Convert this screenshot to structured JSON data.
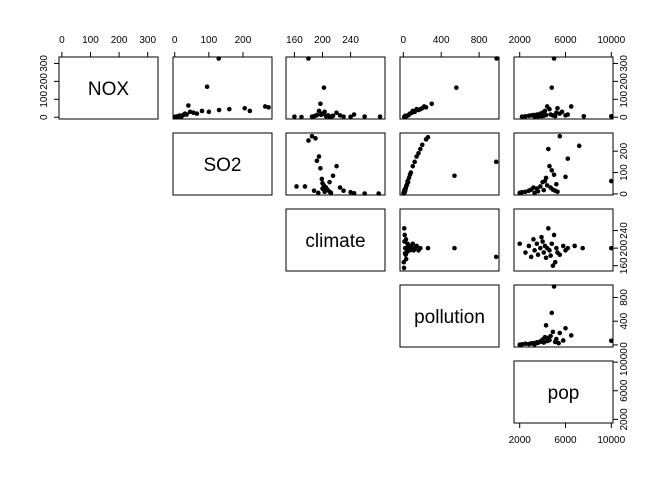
{
  "chart_data": {
    "type": "scatter",
    "layout": "upper-triangle scatterplot matrix",
    "variables": [
      {
        "name": "NOX",
        "ticks": [
          0,
          100,
          200,
          300
        ],
        "tick_labels": [
          "0",
          "100",
          "200",
          "300"
        ],
        "range": [
          -10,
          336
        ]
      },
      {
        "name": "SO2",
        "ticks": [
          0,
          100,
          200
        ],
        "tick_labels": [
          "0",
          "100",
          "200"
        ],
        "range": [
          -5,
          285
        ]
      },
      {
        "name": "climate",
        "ticks": [
          160,
          200,
          240
        ],
        "tick_labels": [
          "160",
          "200",
          "240"
        ],
        "range": [
          148,
          289
        ]
      },
      {
        "name": "pollution",
        "ticks": [
          0,
          400,
          800
        ],
        "tick_labels": [
          "0",
          "400",
          "800"
        ],
        "range": [
          -35,
          1010
        ]
      },
      {
        "name": "pop",
        "ticks": [
          2000,
          6000,
          10000
        ],
        "tick_labels": [
          "2000",
          "6000",
          "10000"
        ],
        "range": [
          1500,
          10150
        ]
      }
    ],
    "panels": [
      {
        "row": "NOX",
        "col": "SO2",
        "points": [
          [
            1,
            2
          ],
          [
            3,
            3
          ],
          [
            5,
            2
          ],
          [
            6,
            4
          ],
          [
            8,
            3
          ],
          [
            10,
            5
          ],
          [
            12,
            6
          ],
          [
            15,
            9
          ],
          [
            20,
            4
          ],
          [
            25,
            12
          ],
          [
            30,
            20
          ],
          [
            35,
            15
          ],
          [
            40,
            65
          ],
          [
            45,
            30
          ],
          [
            55,
            25
          ],
          [
            65,
            20
          ],
          [
            80,
            35
          ],
          [
            95,
            170
          ],
          [
            100,
            30
          ],
          [
            130,
            40
          ],
          [
            160,
            45
          ],
          [
            205,
            50
          ],
          [
            220,
            35
          ],
          [
            265,
            60
          ],
          [
            275,
            55
          ],
          [
            129,
            330
          ]
        ]
      },
      {
        "row": "NOX",
        "col": "climate",
        "points": [
          [
            160,
            3
          ],
          [
            170,
            1
          ],
          [
            180,
            330
          ],
          [
            185,
            3
          ],
          [
            188,
            6
          ],
          [
            192,
            12
          ],
          [
            195,
            35
          ],
          [
            197,
            75
          ],
          [
            200,
            20
          ],
          [
            202,
            165
          ],
          [
            205,
            5
          ],
          [
            210,
            2
          ],
          [
            215,
            8
          ],
          [
            220,
            25
          ],
          [
            230,
            3
          ],
          [
            245,
            15
          ],
          [
            260,
            4
          ],
          [
            282,
            3
          ],
          [
            190,
            8
          ],
          [
            198,
            14
          ],
          [
            203,
            30
          ],
          [
            208,
            10
          ],
          [
            213,
            4
          ],
          [
            225,
            10
          ],
          [
            240,
            2
          ]
        ]
      },
      {
        "row": "NOX",
        "col": "pollution",
        "points": [
          [
            10,
            2
          ],
          [
            30,
            5
          ],
          [
            50,
            10
          ],
          [
            70,
            20
          ],
          [
            90,
            25
          ],
          [
            120,
            30
          ],
          [
            160,
            40
          ],
          [
            200,
            50
          ],
          [
            240,
            55
          ],
          [
            300,
            75
          ],
          [
            560,
            165
          ],
          [
            985,
            330
          ],
          [
            20,
            8
          ],
          [
            60,
            15
          ],
          [
            100,
            35
          ],
          [
            140,
            45
          ],
          [
            180,
            45
          ],
          [
            220,
            60
          ]
        ]
      },
      {
        "row": "NOX",
        "col": "pop",
        "points": [
          [
            2200,
            3
          ],
          [
            2500,
            5
          ],
          [
            2800,
            8
          ],
          [
            3000,
            10
          ],
          [
            3200,
            12
          ],
          [
            3500,
            15
          ],
          [
            3800,
            20
          ],
          [
            4000,
            25
          ],
          [
            4200,
            35
          ],
          [
            4400,
            60
          ],
          [
            4600,
            45
          ],
          [
            4800,
            165
          ],
          [
            5000,
            330
          ],
          [
            5200,
            25
          ],
          [
            5500,
            20
          ],
          [
            6000,
            10
          ],
          [
            6500,
            60
          ],
          [
            7600,
            5
          ],
          [
            10000,
            5
          ],
          [
            3600,
            4
          ],
          [
            3900,
            6
          ],
          [
            4100,
            8
          ],
          [
            4300,
            12
          ],
          [
            4700,
            15
          ],
          [
            4900,
            10
          ],
          [
            5100,
            6
          ],
          [
            5300,
            50
          ],
          [
            5700,
            30
          ],
          [
            6200,
            15
          ],
          [
            3300,
            3
          ]
        ]
      },
      {
        "row": "SO2",
        "col": "climate",
        "points": [
          [
            180,
            250
          ],
          [
            185,
            270
          ],
          [
            190,
            260
          ],
          [
            192,
            155
          ],
          [
            195,
            175
          ],
          [
            197,
            120
          ],
          [
            199,
            70
          ],
          [
            200,
            50
          ],
          [
            202,
            40
          ],
          [
            205,
            30
          ],
          [
            207,
            20
          ],
          [
            210,
            10
          ],
          [
            212,
            5
          ],
          [
            215,
            85
          ],
          [
            220,
            130
          ],
          [
            225,
            30
          ],
          [
            230,
            15
          ],
          [
            240,
            8
          ],
          [
            245,
            3
          ],
          [
            260,
            2
          ],
          [
            280,
            2
          ],
          [
            163,
            35
          ],
          [
            175,
            35
          ],
          [
            200,
            25
          ],
          [
            210,
            55
          ],
          [
            188,
            15
          ],
          [
            194,
            5
          ],
          [
            203,
            10
          ]
        ]
      },
      {
        "row": "SO2",
        "col": "pollution",
        "points": [
          [
            5,
            1
          ],
          [
            10,
            5
          ],
          [
            15,
            8
          ],
          [
            20,
            15
          ],
          [
            25,
            25
          ],
          [
            30,
            35
          ],
          [
            40,
            45
          ],
          [
            45,
            60
          ],
          [
            60,
            75
          ],
          [
            80,
            100
          ],
          [
            100,
            130
          ],
          [
            120,
            150
          ],
          [
            140,
            175
          ],
          [
            160,
            190
          ],
          [
            180,
            210
          ],
          [
            200,
            230
          ],
          [
            240,
            255
          ],
          [
            260,
            265
          ],
          [
            540,
            85
          ],
          [
            980,
            150
          ],
          [
            2,
            3
          ],
          [
            8,
            10
          ],
          [
            12,
            18
          ],
          [
            18,
            22
          ],
          [
            35,
            40
          ],
          [
            50,
            55
          ],
          [
            70,
            90
          ]
        ]
      },
      {
        "row": "SO2",
        "col": "pop",
        "points": [
          [
            2000,
            5
          ],
          [
            2200,
            8
          ],
          [
            2500,
            10
          ],
          [
            2800,
            15
          ],
          [
            3000,
            20
          ],
          [
            3200,
            30
          ],
          [
            3500,
            25
          ],
          [
            3800,
            35
          ],
          [
            4000,
            55
          ],
          [
            4200,
            60
          ],
          [
            4300,
            75
          ],
          [
            4500,
            210
          ],
          [
            4600,
            130
          ],
          [
            4800,
            110
          ],
          [
            5000,
            90
          ],
          [
            5200,
            45
          ],
          [
            5500,
            270
          ],
          [
            6000,
            80
          ],
          [
            6200,
            165
          ],
          [
            7200,
            225
          ],
          [
            10000,
            60
          ],
          [
            3300,
            5
          ],
          [
            3600,
            12
          ],
          [
            4100,
            18
          ],
          [
            4400,
            40
          ],
          [
            4700,
            30
          ],
          [
            4900,
            20
          ],
          [
            5100,
            15
          ],
          [
            5300,
            10
          ]
        ]
      },
      {
        "row": "climate",
        "col": "pollution",
        "points": [
          [
            10,
            245
          ],
          [
            15,
            230
          ],
          [
            20,
            200
          ],
          [
            25,
            185
          ],
          [
            30,
            175
          ],
          [
            35,
            190
          ],
          [
            40,
            195
          ],
          [
            45,
            210
          ],
          [
            50,
            205
          ],
          [
            60,
            200
          ],
          [
            70,
            195
          ],
          [
            80,
            205
          ],
          [
            90,
            200
          ],
          [
            100,
            210
          ],
          [
            110,
            195
          ],
          [
            120,
            200
          ],
          [
            140,
            205
          ],
          [
            160,
            195
          ],
          [
            180,
            200
          ],
          [
            260,
            200
          ],
          [
            540,
            200
          ],
          [
            980,
            180
          ],
          [
            5,
            168
          ],
          [
            8,
            155
          ],
          [
            12,
            215
          ],
          [
            18,
            188
          ],
          [
            28,
            220
          ]
        ]
      },
      {
        "row": "climate",
        "col": "pop",
        "points": [
          [
            2000,
            210
          ],
          [
            2500,
            190
          ],
          [
            3000,
            180
          ],
          [
            3200,
            220
          ],
          [
            3500,
            210
          ],
          [
            3800,
            200
          ],
          [
            4000,
            215
          ],
          [
            4200,
            205
          ],
          [
            4400,
            200
          ],
          [
            4600,
            195
          ],
          [
            4800,
            210
          ],
          [
            5000,
            230
          ],
          [
            5200,
            200
          ],
          [
            5500,
            185
          ],
          [
            5800,
            205
          ],
          [
            6000,
            195
          ],
          [
            6200,
            200
          ],
          [
            6800,
            205
          ],
          [
            7500,
            200
          ],
          [
            10000,
            200
          ],
          [
            2800,
            205
          ],
          [
            3300,
            195
          ],
          [
            3600,
            185
          ],
          [
            3900,
            225
          ],
          [
            4100,
            190
          ],
          [
            4300,
            178
          ],
          [
            4500,
            245
          ],
          [
            4700,
            183
          ],
          [
            5100,
            168
          ],
          [
            5300,
            190
          ],
          [
            4900,
            160
          ]
        ]
      },
      {
        "row": "pollution",
        "col": "pop",
        "points": [
          [
            2000,
            5
          ],
          [
            2200,
            10
          ],
          [
            2500,
            20
          ],
          [
            2800,
            15
          ],
          [
            3000,
            25
          ],
          [
            3200,
            30
          ],
          [
            3500,
            45
          ],
          [
            3800,
            60
          ],
          [
            4000,
            90
          ],
          [
            4200,
            130
          ],
          [
            4300,
            330
          ],
          [
            4500,
            120
          ],
          [
            4600,
            80
          ],
          [
            4800,
            540
          ],
          [
            5000,
            1010
          ],
          [
            5200,
            100
          ],
          [
            5500,
            200
          ],
          [
            6000,
            280
          ],
          [
            6500,
            160
          ],
          [
            10000,
            70
          ],
          [
            3300,
            8
          ],
          [
            3600,
            35
          ],
          [
            3900,
            55
          ],
          [
            4100,
            40
          ],
          [
            4400,
            65
          ],
          [
            4700,
            150
          ],
          [
            4900,
            220
          ],
          [
            5100,
            50
          ],
          [
            5400,
            30
          ],
          [
            5800,
            75
          ]
        ]
      }
    ],
    "grid": false,
    "legend": "none"
  }
}
